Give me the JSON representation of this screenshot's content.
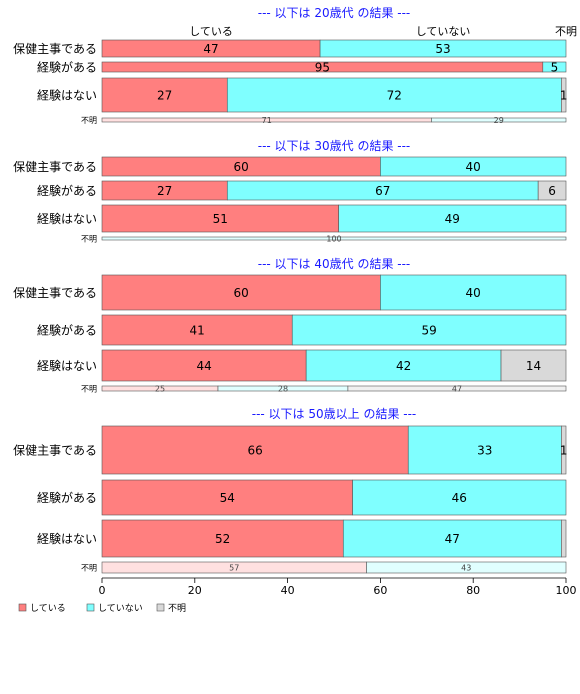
{
  "chart_data": {
    "type": "bar",
    "orientation": "horizontal",
    "stacked": "percent",
    "xlim": [
      0,
      100
    ],
    "xticks": [
      0,
      20,
      40,
      60,
      80,
      100
    ],
    "legend_position": "bottom-left",
    "legend": [
      {
        "name": "している",
        "color": "#FF7F7F"
      },
      {
        "name": "していない",
        "color": "#7FFFFF"
      },
      {
        "name": "不明",
        "color": "#D9D9D9"
      }
    ],
    "column_headers": [
      "している",
      "していない",
      "不明"
    ],
    "groups": [
      {
        "title": "--- 以下は 20歳代 の結果 ---",
        "rows": [
          {
            "category": "保健主事である",
            "values": [
              47,
              53,
              0
            ],
            "labels": [
              "47",
              "53",
              ""
            ]
          },
          {
            "category": "経験がある",
            "values": [
              95,
              5,
              0
            ],
            "labels": [
              "95",
              "5",
              ""
            ]
          },
          {
            "category": "経験はない",
            "values": [
              27,
              72,
              1
            ],
            "labels": [
              "27",
              "72",
              "1"
            ]
          }
        ],
        "unknown": {
          "category": "不明",
          "values": [
            71,
            29,
            0
          ],
          "labels": [
            "71",
            "29",
            ""
          ]
        }
      },
      {
        "title": "--- 以下は 30歳代 の結果 ---",
        "rows": [
          {
            "category": "保健主事である",
            "values": [
              60,
              40,
              0
            ],
            "labels": [
              "60",
              "40",
              ""
            ]
          },
          {
            "category": "経験がある",
            "values": [
              27,
              67,
              6
            ],
            "labels": [
              "27",
              "67",
              "6"
            ]
          },
          {
            "category": "経験はない",
            "values": [
              51,
              49,
              0
            ],
            "labels": [
              "51",
              "49",
              ""
            ]
          }
        ],
        "unknown": {
          "category": "不明",
          "values": [
            0,
            100,
            0
          ],
          "labels": [
            "",
            "100",
            ""
          ]
        }
      },
      {
        "title": "--- 以下は 40歳代 の結果 ---",
        "rows": [
          {
            "category": "保健主事である",
            "values": [
              60,
              40,
              0
            ],
            "labels": [
              "60",
              "40",
              ""
            ]
          },
          {
            "category": "経験がある",
            "values": [
              41,
              59,
              0
            ],
            "labels": [
              "41",
              "59",
              ""
            ]
          },
          {
            "category": "経験はない",
            "values": [
              44,
              42,
              14
            ],
            "labels": [
              "44",
              "42",
              "14"
            ]
          }
        ],
        "unknown": {
          "category": "不明",
          "values": [
            25,
            28,
            47
          ],
          "labels": [
            "25",
            "28",
            "47"
          ]
        }
      },
      {
        "title": "--- 以下は 50歳以上 の結果 ---",
        "rows": [
          {
            "category": "保健主事である",
            "values": [
              66,
              33,
              1
            ],
            "labels": [
              "66",
              "33",
              "1"
            ]
          },
          {
            "category": "経験がある",
            "values": [
              54,
              46,
              0
            ],
            "labels": [
              "54",
              "46",
              ""
            ]
          },
          {
            "category": "経験はない",
            "values": [
              52,
              47,
              1
            ],
            "labels": [
              "52",
              "47",
              ""
            ]
          }
        ],
        "unknown": {
          "category": "不明",
          "values": [
            57,
            43,
            0
          ],
          "labels": [
            "57",
            "43",
            ""
          ]
        }
      }
    ]
  }
}
